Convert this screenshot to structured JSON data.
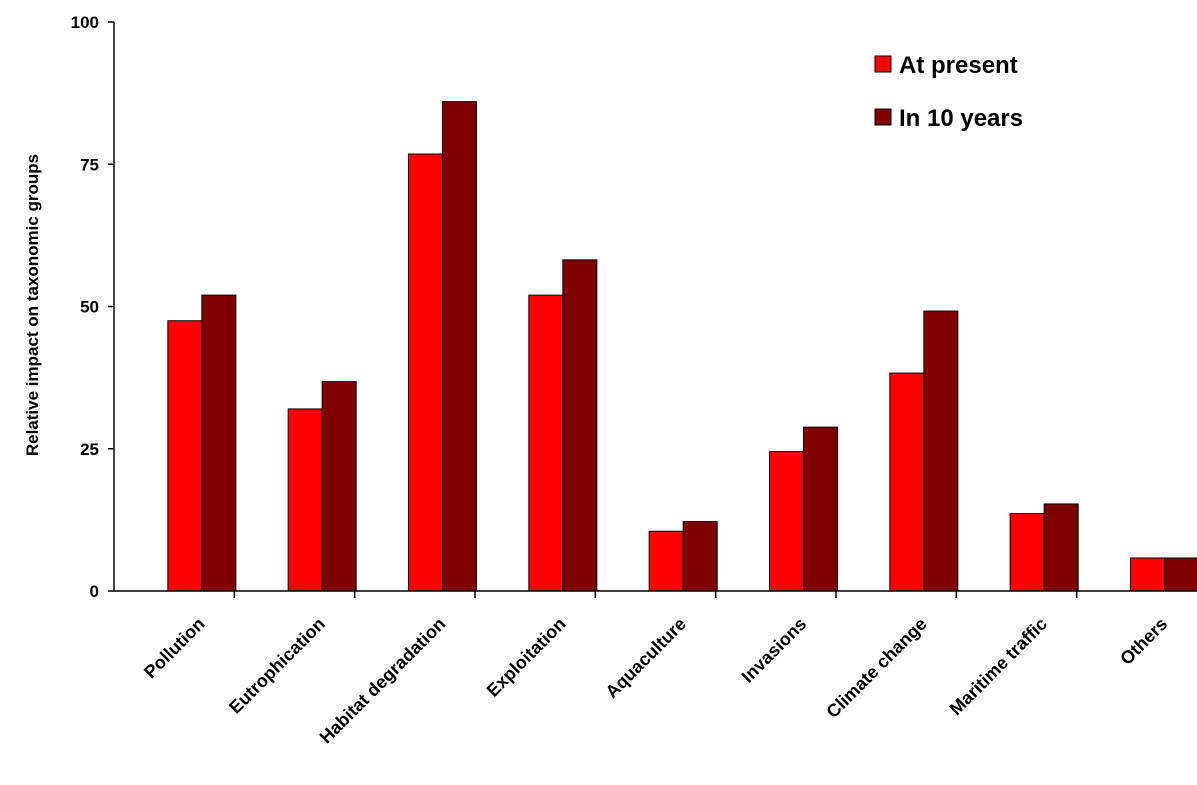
{
  "chart_data": {
    "type": "bar",
    "title": "",
    "xlabel": "",
    "ylabel": "Relative impact on taxonomic groups",
    "ylim": [
      0,
      100
    ],
    "yticks": [
      0,
      25,
      50,
      75,
      100
    ],
    "grid": false,
    "legend_position": "top-right",
    "categories": [
      "Pollution",
      "Eutrophication",
      "Habitat degradation",
      "Exploitation",
      "Aquaculture",
      "Invasions",
      "Climate change",
      "Maritime traffic",
      "Others"
    ],
    "series": [
      {
        "name": "At present",
        "color": "#ff0000",
        "values": [
          47.5,
          32,
          76.8,
          52,
          10.5,
          24.5,
          38.3,
          13.6,
          5.8
        ]
      },
      {
        "name": "In 10 years",
        "color": "#800000",
        "values": [
          52,
          36.8,
          86,
          58.2,
          12.2,
          28.8,
          49.2,
          15.3,
          5.8
        ]
      }
    ]
  }
}
